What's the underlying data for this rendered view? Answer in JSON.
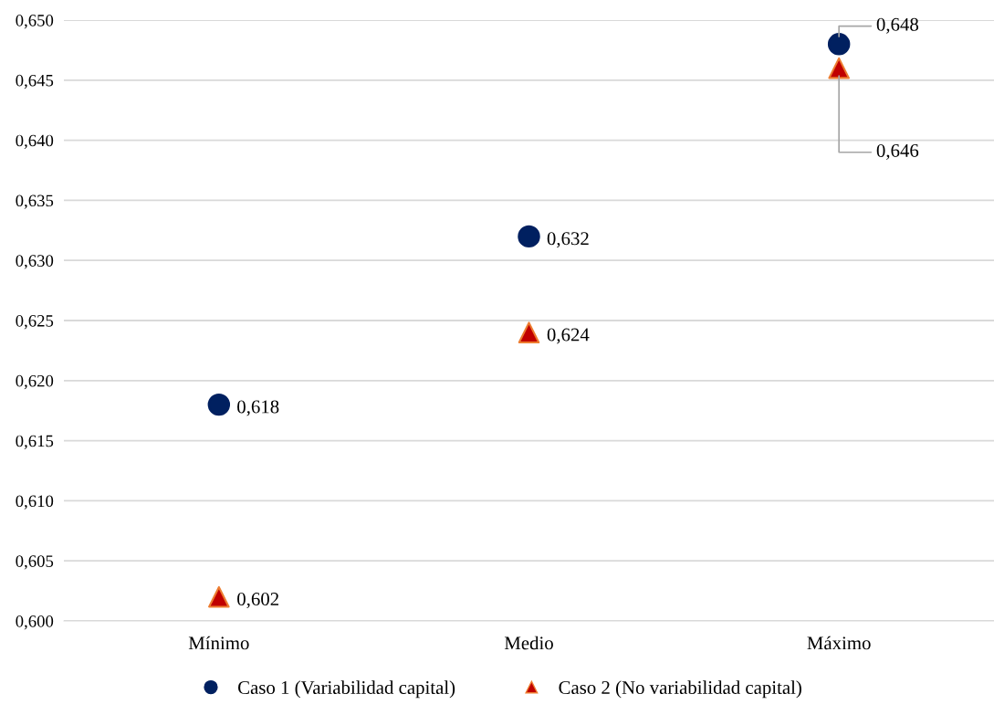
{
  "chart_data": {
    "type": "scatter",
    "categories": [
      "Mínimo",
      "Medio",
      "Máximo"
    ],
    "series": [
      {
        "name": "Caso 1 (Variabilidad capital)",
        "color": "#002060",
        "marker": "circle",
        "values": [
          0.618,
          0.632,
          0.648
        ],
        "value_labels": [
          "0,618",
          "0,632",
          "0,648"
        ]
      },
      {
        "name": "Caso 2 (No variabilidad capital)",
        "color": "#c00000",
        "marker": "triangle",
        "values": [
          0.602,
          0.624,
          0.646
        ],
        "value_labels": [
          "0,602",
          "0,624",
          "0,646"
        ]
      }
    ],
    "ylim": [
      0.6,
      0.65
    ],
    "yticks": [
      {
        "value": 0.6,
        "label": "0,600"
      },
      {
        "value": 0.605,
        "label": "0,605"
      },
      {
        "value": 0.61,
        "label": "0,610"
      },
      {
        "value": 0.615,
        "label": "0,615"
      },
      {
        "value": 0.62,
        "label": "0,620"
      },
      {
        "value": 0.625,
        "label": "0,625"
      },
      {
        "value": 0.63,
        "label": "0,630"
      },
      {
        "value": 0.635,
        "label": "0,635"
      },
      {
        "value": 0.64,
        "label": "0,640"
      },
      {
        "value": 0.645,
        "label": "0,645"
      },
      {
        "value": 0.65,
        "label": "0,650"
      }
    ],
    "grid": "y",
    "legend": "bottom"
  }
}
